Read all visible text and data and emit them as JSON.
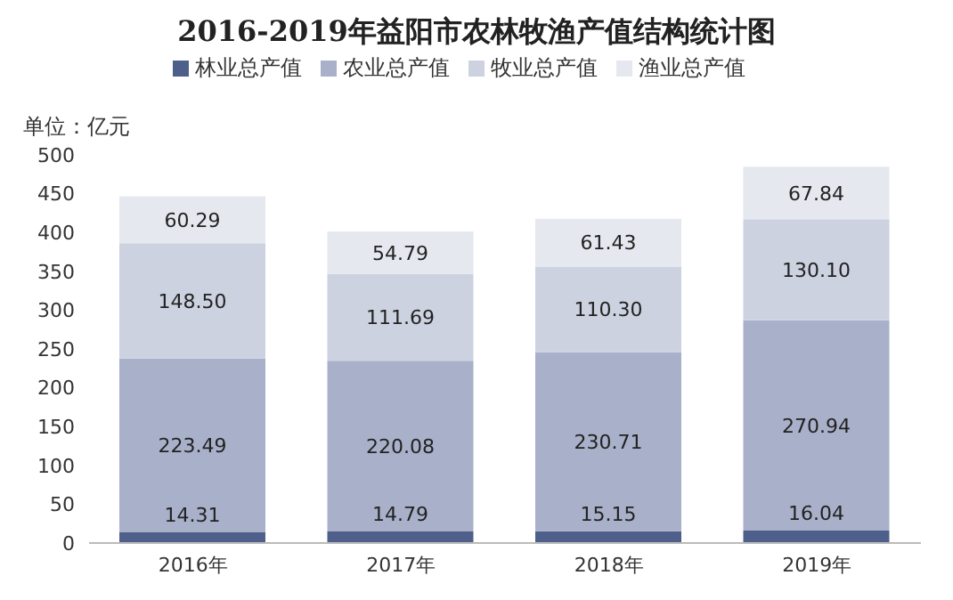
{
  "chart_data": {
    "type": "bar",
    "title": "2016-2019年益阳市农林牧渔产值结构统计图",
    "ylabel": "单位：亿元",
    "categories": [
      "2016年",
      "2017年",
      "2018年",
      "2019年"
    ],
    "stacked": true,
    "legend": "top",
    "grid": false,
    "ylim": [
      0,
      500
    ],
    "yticks": [
      0,
      50,
      100,
      150,
      200,
      250,
      300,
      350,
      400,
      450,
      500
    ],
    "series": [
      {
        "name": "林业总产值",
        "color": "#4e5f8c",
        "values": [
          14.31,
          14.79,
          15.15,
          16.04
        ],
        "value_labels": [
          "14.31",
          "14.79",
          "15.15",
          "16.04"
        ]
      },
      {
        "name": "农业总产值",
        "color": "#a9b1ca",
        "values": [
          223.49,
          220.08,
          230.71,
          270.94
        ],
        "value_labels": [
          "223.49",
          "220.08",
          "230.71",
          "270.94"
        ]
      },
      {
        "name": "牧业总产值",
        "color": "#cdd2e1",
        "values": [
          148.5,
          111.69,
          110.3,
          130.1
        ],
        "value_labels": [
          "148.50",
          "111.69",
          "110.30",
          "130.10"
        ]
      },
      {
        "name": "渔业总产值",
        "color": "#e6e8ef",
        "values": [
          60.29,
          54.79,
          61.43,
          67.84
        ],
        "value_labels": [
          "60.29",
          "54.79",
          "61.43",
          "67.84"
        ]
      }
    ]
  }
}
